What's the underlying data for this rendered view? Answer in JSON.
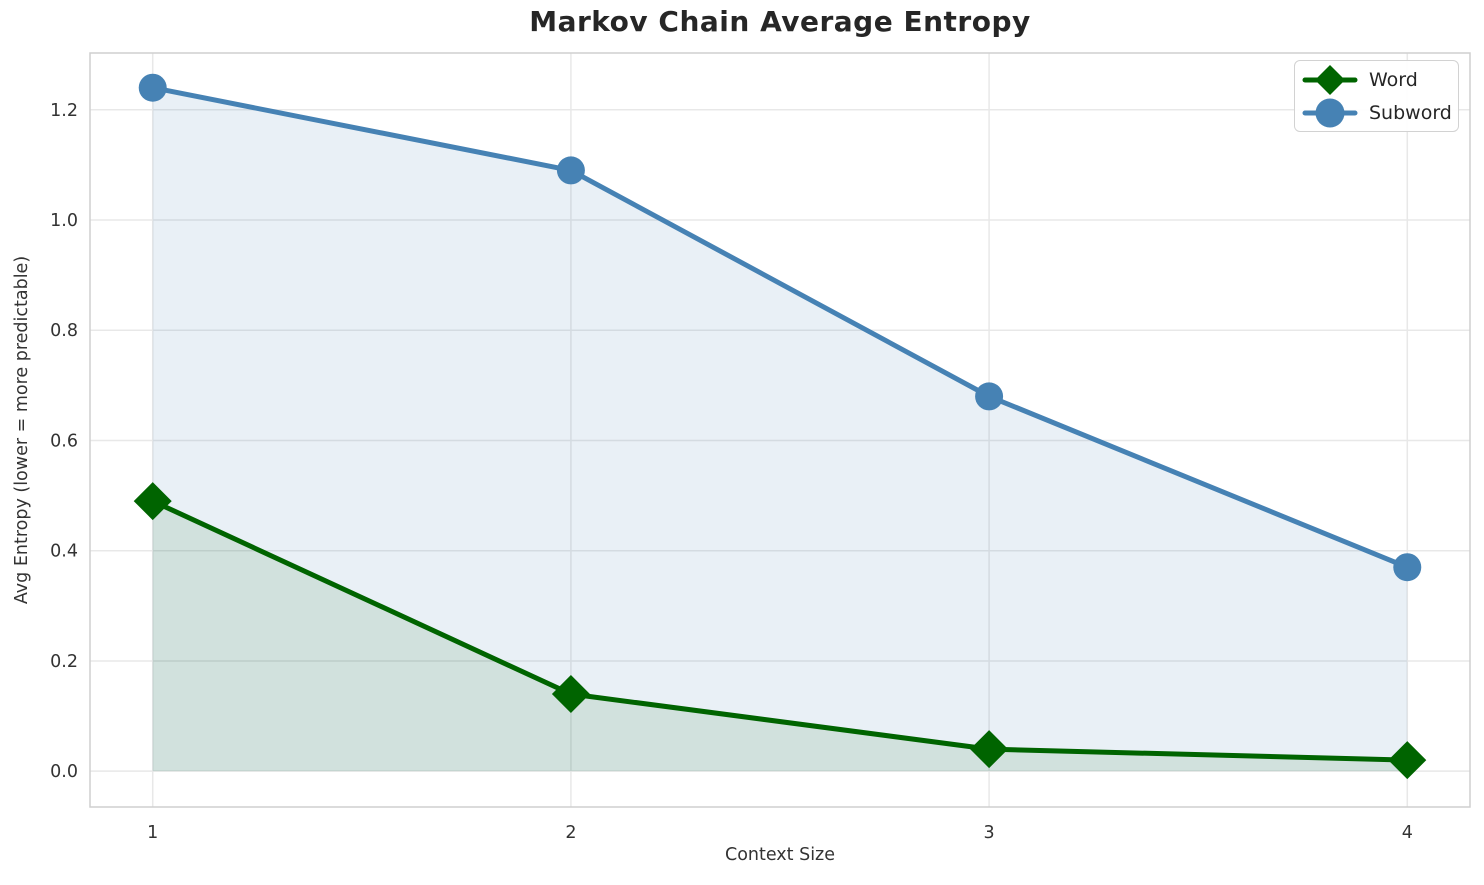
{
  "chart_data": {
    "type": "line",
    "title": "Markov Chain Average Entropy",
    "xlabel": "Context Size",
    "ylabel": "Avg Entropy (lower = more predictable)",
    "x": [
      1,
      2,
      3,
      4
    ],
    "series": [
      {
        "name": "Word",
        "marker": "diamond",
        "color": "#006400",
        "fill": "rgba(0,100,0,0.10)",
        "values": [
          0.49,
          0.14,
          0.04,
          0.02
        ]
      },
      {
        "name": "Subword",
        "marker": "circle",
        "color": "#4682b4",
        "fill": "rgba(70,130,180,0.12)",
        "values": [
          1.24,
          1.09,
          0.68,
          0.37
        ]
      }
    ],
    "xlim": [
      0.85,
      4.15
    ],
    "ylim": [
      -0.065,
      1.303
    ],
    "xticks": [
      1,
      2,
      3,
      4
    ],
    "xtick_labels": [
      "1",
      "2",
      "3",
      "4"
    ],
    "yticks": [
      0.0,
      0.2,
      0.4,
      0.6,
      0.8,
      1.0,
      1.2
    ],
    "ytick_labels": [
      "0.0",
      "0.2",
      "0.4",
      "0.6",
      "0.8",
      "1.0",
      "1.2"
    ],
    "grid": true,
    "area_fill_to_zero": true,
    "legend_position": "upper right"
  },
  "style": {
    "grid_color": "#e8e8e8",
    "spine_color": "#cfcfcf",
    "tick_text_color": "#333333",
    "title_color": "#262626",
    "legend_border_color": "#d2d2d2",
    "line_width": 5,
    "circle_radius": 14,
    "diamond_half": 19
  }
}
